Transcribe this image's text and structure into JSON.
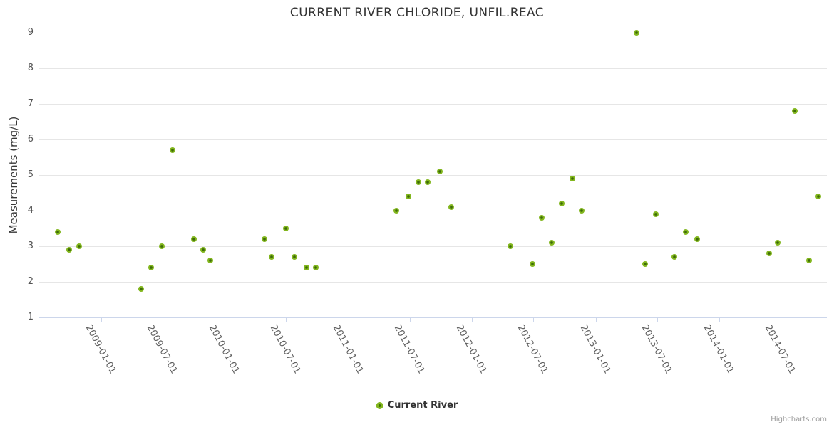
{
  "credits": "Highcharts.com",
  "colors": {
    "marker_outer": "#82b61e",
    "marker_core": "#3e6c08",
    "gridline": "#e6e6e6",
    "axis_line": "#ccd6eb",
    "title_text": "#333333",
    "axis_label_text": "#606060"
  },
  "chart_data": {
    "type": "scatter",
    "title": "CURRENT RIVER CHLORIDE, UNFIL.REAC",
    "xlabel": "",
    "ylabel": "Measurements (mg/L)",
    "ylim": [
      1,
      9
    ],
    "yticks": [
      1,
      2,
      3,
      4,
      5,
      6,
      7,
      8,
      9
    ],
    "xticks": [
      "2009-01-01",
      "2009-07-01",
      "2010-01-01",
      "2010-07-01",
      "2011-01-01",
      "2011-07-01",
      "2012-01-01",
      "2012-07-01",
      "2013-01-01",
      "2013-07-01",
      "2014-01-01",
      "2014-07-01"
    ],
    "grid": "horizontal-only",
    "legend": {
      "position": "bottom-center",
      "items": [
        {
          "label": "Current River"
        }
      ]
    },
    "series": [
      {
        "name": "Current River",
        "points": [
          {
            "x": "2008-08-26",
            "y": 3.4
          },
          {
            "x": "2008-09-29",
            "y": 2.9
          },
          {
            "x": "2008-10-28",
            "y": 3.0
          },
          {
            "x": "2009-04-29",
            "y": 1.8
          },
          {
            "x": "2009-05-28",
            "y": 2.4
          },
          {
            "x": "2009-06-30",
            "y": 3.0
          },
          {
            "x": "2009-07-31",
            "y": 5.7
          },
          {
            "x": "2009-10-01",
            "y": 3.2
          },
          {
            "x": "2009-10-29",
            "y": 2.9
          },
          {
            "x": "2009-11-19",
            "y": 2.6
          },
          {
            "x": "2010-04-28",
            "y": 3.2
          },
          {
            "x": "2010-05-19",
            "y": 2.7
          },
          {
            "x": "2010-06-30",
            "y": 3.5
          },
          {
            "x": "2010-07-25",
            "y": 2.7
          },
          {
            "x": "2010-08-30",
            "y": 2.4
          },
          {
            "x": "2010-09-28",
            "y": 2.4
          },
          {
            "x": "2011-05-24",
            "y": 4.0
          },
          {
            "x": "2011-06-27",
            "y": 4.4
          },
          {
            "x": "2011-07-27",
            "y": 4.8
          },
          {
            "x": "2011-08-23",
            "y": 4.8
          },
          {
            "x": "2011-09-28",
            "y": 5.1
          },
          {
            "x": "2011-11-01",
            "y": 4.1
          },
          {
            "x": "2012-04-23",
            "y": 3.0
          },
          {
            "x": "2012-06-28",
            "y": 2.5
          },
          {
            "x": "2012-07-25",
            "y": 3.8
          },
          {
            "x": "2012-08-24",
            "y": 3.1
          },
          {
            "x": "2012-09-22",
            "y": 4.2
          },
          {
            "x": "2012-10-24",
            "y": 4.9
          },
          {
            "x": "2012-11-20",
            "y": 4.0
          },
          {
            "x": "2013-05-01",
            "y": 9.0
          },
          {
            "x": "2013-05-28",
            "y": 2.5
          },
          {
            "x": "2013-06-27",
            "y": 3.9
          },
          {
            "x": "2013-08-21",
            "y": 2.7
          },
          {
            "x": "2013-09-25",
            "y": 3.4
          },
          {
            "x": "2013-10-27",
            "y": 3.2
          },
          {
            "x": "2014-05-28",
            "y": 2.8
          },
          {
            "x": "2014-06-22",
            "y": 3.1
          },
          {
            "x": "2014-08-13",
            "y": 6.8
          },
          {
            "x": "2014-09-24",
            "y": 2.6
          },
          {
            "x": "2014-10-20",
            "y": 4.4
          }
        ]
      }
    ]
  }
}
